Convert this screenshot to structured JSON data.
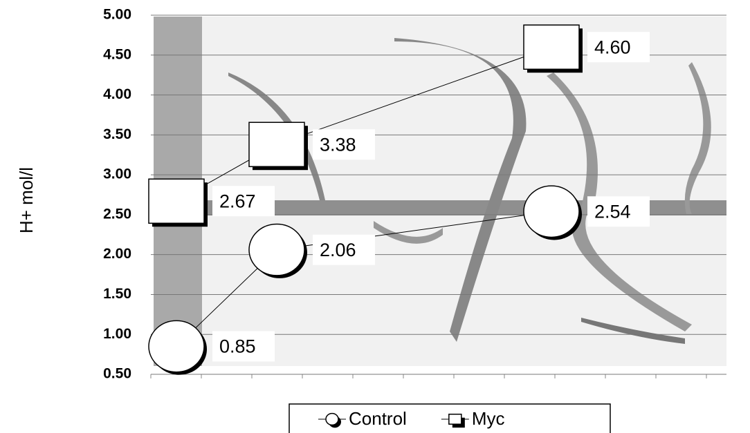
{
  "chart_data": {
    "type": "line",
    "y_label": "H+ mol/l",
    "categories": [
      null,
      null,
      null
    ],
    "series": [
      {
        "name": "Control",
        "marker": "circle",
        "values": [
          0.85,
          2.06,
          2.54
        ],
        "value_labels": [
          "0.85",
          "2.06",
          "2.54"
        ]
      },
      {
        "name": "Myc",
        "marker": "square",
        "values": [
          2.67,
          3.38,
          4.6
        ],
        "value_labels": [
          "2.67",
          "3.38",
          "4.60"
        ]
      }
    ],
    "ylim": [
      0.5,
      5.0
    ],
    "yticks": [
      {
        "value": 0.5,
        "label": "0.50"
      },
      {
        "value": 1.0,
        "label": "1.00"
      },
      {
        "value": 1.5,
        "label": "1.50"
      },
      {
        "value": 2.0,
        "label": "2.00"
      },
      {
        "value": 2.5,
        "label": "2.50"
      },
      {
        "value": 3.0,
        "label": "3.00"
      },
      {
        "value": 3.5,
        "label": "3.50"
      },
      {
        "value": 4.0,
        "label": "4.00"
      },
      {
        "value": 4.5,
        "label": "4.50"
      },
      {
        "value": 5.0,
        "label": "5.00"
      }
    ],
    "grid": true,
    "legend": "bottom"
  }
}
